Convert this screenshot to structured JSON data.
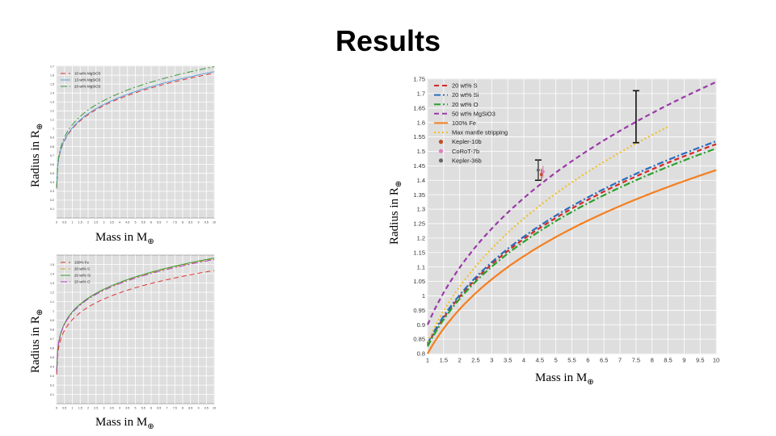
{
  "title": "Results",
  "axis_label_text": {
    "mass_prefix": "Mass in M",
    "radius_prefix": "Radius in R",
    "earth_symbol": "⊕"
  },
  "chart_data": [
    {
      "type": "line",
      "xlim": [
        0,
        10
      ],
      "ylim": [
        0,
        1.7
      ],
      "xticks": [
        "0",
        "0.5",
        "1",
        "1.5",
        "2",
        "2.5",
        "3",
        "3.5",
        "4",
        "4.5",
        "5",
        "5.5",
        "6",
        "6.5",
        "7",
        "7.5",
        "8",
        "8.5",
        "9",
        "9.5",
        "10"
      ],
      "yticks": [
        "0.1",
        "0.2",
        "0.3",
        "0.4",
        "0.5",
        "0.6",
        "0.7",
        "0.8",
        "0.9",
        "1",
        "1.1",
        "1.2",
        "1.3",
        "1.4",
        "1.5",
        "1.6",
        "1.7"
      ],
      "xlabel": "Mass in M⊕",
      "ylabel": "Radius in R⊕",
      "grid": true,
      "legend_position": "top-left",
      "series": [
        {
          "name": "10 wt% MgSiO3",
          "color": "#e03030",
          "dash": "dashed",
          "coef": 1.0,
          "exp": 0.21
        },
        {
          "name": "13 wt% MgSiO3",
          "color": "#5aa0d8",
          "dash": "solid",
          "coef": 1.01,
          "exp": 0.21
        },
        {
          "name": "20 wt% MgSiO3",
          "color": "#3a9a3a",
          "dash": "dashdot",
          "coef": 1.045,
          "exp": 0.21
        }
      ]
    },
    {
      "type": "line",
      "xlim": [
        0,
        10
      ],
      "ylim": [
        0,
        1.6
      ],
      "xticks": [
        "0",
        "0.5",
        "1",
        "1.5",
        "2",
        "2.5",
        "3",
        "3.5",
        "4",
        "4.5",
        "5",
        "5.5",
        "6",
        "6.5",
        "7",
        "7.5",
        "8",
        "8.5",
        "9",
        "9.5",
        "10"
      ],
      "yticks": [
        "0.1",
        "0.2",
        "0.3",
        "0.4",
        "0.5",
        "0.6",
        "0.7",
        "0.8",
        "0.9",
        "1",
        "1.1",
        "1.2",
        "1.3",
        "1.4",
        "1.5"
      ],
      "xlabel": "Mass in M⊕",
      "ylabel": "Radius in R⊕",
      "grid": true,
      "legend_position": "top-left",
      "series": [
        {
          "name": "100% Fe",
          "color": "#e03030",
          "dash": "dashed",
          "coef": 0.905,
          "exp": 0.2
        },
        {
          "name": "20 wt% S",
          "color": "#d4a020",
          "dash": "dashed",
          "coef": 0.985,
          "exp": 0.2
        },
        {
          "name": "20 wt% Si",
          "color": "#3a9a3a",
          "dash": "solid",
          "coef": 0.99,
          "exp": 0.2
        },
        {
          "name": "20 wt% O",
          "color": "#b040c0",
          "dash": "dashdot",
          "coef": 0.98,
          "exp": 0.2
        }
      ]
    },
    {
      "type": "line",
      "xlim": [
        1,
        10
      ],
      "ylim": [
        0.8,
        1.75
      ],
      "xticks": [
        "1",
        "1.5",
        "2",
        "2.5",
        "3",
        "3.5",
        "4",
        "4.5",
        "5",
        "5.5",
        "6",
        "6.5",
        "7",
        "7.5",
        "8",
        "8.5",
        "9",
        "9.5",
        "10"
      ],
      "yticks": [
        "0.8",
        "0.85",
        "0.9",
        "0.95",
        "1",
        "1.05",
        "1.1",
        "1.15",
        "1.2",
        "1.25",
        "1.3",
        "1.35",
        "1.4",
        "1.45",
        "1.5",
        "1.55",
        "1.6",
        "1.65",
        "1.7",
        "1.75"
      ],
      "xlabel": "Mass in M⊕",
      "ylabel": "Radius in R⊕",
      "grid": true,
      "legend_position": "top-left",
      "series": [
        {
          "name": "20 wt% S",
          "color": "#d62728",
          "dash": "dashed",
          "y_at_1": 0.83,
          "y_at_10": 1.525
        },
        {
          "name": "20 wt% Si",
          "color": "#2a6ebb",
          "dash": "dashdot",
          "y_at_1": 0.835,
          "y_at_10": 1.535
        },
        {
          "name": "20 wt% O",
          "color": "#2ca02c",
          "dash": "dashdot",
          "y_at_1": 0.825,
          "y_at_10": 1.51
        },
        {
          "name": "50 wt% MgSiO3",
          "color": "#9a3aa8",
          "dash": "dashed",
          "y_at_1": 0.9,
          "y_at_10": 1.74
        },
        {
          "name": "100% Fe",
          "color": "#f47f20",
          "dash": "solid",
          "y_at_1": 0.8,
          "y_at_10": 1.435
        },
        {
          "name": "Max mantle stripping",
          "color": "#f2c02a",
          "dash": "dotted",
          "y_at_1": 0.84,
          "y_at_8.5": 1.585
        }
      ],
      "markers": [
        {
          "name": "Kepler-10b",
          "color": "#c05020",
          "x": 4.55,
          "y": 1.42,
          "yerr": 0.02
        },
        {
          "name": "CoRoT-7b",
          "color": "#e080c0",
          "x": 4.6,
          "y": 1.43,
          "yerr": 0.02
        },
        {
          "name": "Kepler-36b",
          "color": "#666666",
          "x": 4.45,
          "y": 1.435,
          "yerr": 0.035
        }
      ],
      "error_bars": [
        {
          "x": 4.45,
          "y_low": 1.4,
          "y_high": 1.47
        },
        {
          "x": 7.5,
          "y_low": 1.53,
          "y_high": 1.71
        }
      ]
    }
  ]
}
